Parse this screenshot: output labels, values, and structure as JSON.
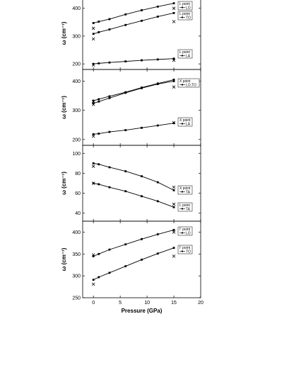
{
  "chart_data": [
    {
      "type": "line",
      "ylabel": "ω (cm⁻¹)",
      "xlim": [
        -2,
        20
      ],
      "ylim": [
        180,
        440
      ],
      "yticks": [
        200,
        300,
        400
      ],
      "series": [
        {
          "name": "LO",
          "legend_title": "L point",
          "x": [
            0,
            1,
            3,
            6,
            9,
            12,
            15
          ],
          "y": [
            347,
            352,
            361,
            378,
            393,
            406,
            418
          ]
        },
        {
          "name": "TO",
          "legend_title": "L point",
          "x": [
            0,
            1,
            3,
            6,
            9,
            12,
            15
          ],
          "y": [
            308,
            314,
            324,
            340,
            355,
            370,
            383
          ]
        },
        {
          "name": "LA",
          "legend_title": "L point",
          "x": [
            0,
            1,
            3,
            6,
            9,
            12,
            15
          ],
          "y": [
            200,
            202,
            205,
            209,
            213,
            216,
            219
          ]
        }
      ],
      "markers_x": [
        {
          "x": 0,
          "y": 328
        },
        {
          "x": 0,
          "y": 290
        },
        {
          "x": 0,
          "y": 196
        },
        {
          "x": 15,
          "y": 400
        },
        {
          "x": 15,
          "y": 352
        },
        {
          "x": 15,
          "y": 213
        }
      ]
    },
    {
      "type": "line",
      "ylabel": "ω (cm⁻¹)",
      "xlim": [
        -2,
        20
      ],
      "ylim": [
        180,
        440
      ],
      "yticks": [
        200,
        300,
        400
      ],
      "series": [
        {
          "name": "LO,TO",
          "legend_title": "X point",
          "x": [
            0,
            1,
            3,
            6,
            9,
            12,
            15
          ],
          "y": [
            333,
            338,
            348,
            362,
            378,
            392,
            405
          ]
        },
        {
          "name": "LO,TO",
          "legend_title": "X point",
          "x": [
            0,
            1,
            3,
            6,
            9,
            12,
            15
          ],
          "y": [
            324,
            330,
            342,
            360,
            376,
            390,
            400
          ]
        },
        {
          "name": "LA",
          "legend_title": "X point",
          "x": [
            0,
            1,
            3,
            6,
            9,
            12,
            15
          ],
          "y": [
            218,
            220,
            226,
            232,
            240,
            248,
            256
          ]
        }
      ],
      "markers_x": [
        {
          "x": 0,
          "y": 330
        },
        {
          "x": 0,
          "y": 320
        },
        {
          "x": 0,
          "y": 211
        },
        {
          "x": 15,
          "y": 380
        },
        {
          "x": 15,
          "y": 258
        }
      ]
    },
    {
      "type": "line",
      "ylabel": "ω (cm⁻¹)",
      "xlim": [
        -2,
        20
      ],
      "ylim": [
        32,
        108
      ],
      "yticks": [
        40,
        60,
        80,
        100
      ],
      "series": [
        {
          "name": "TA",
          "legend_title": "X point",
          "x": [
            0,
            1,
            3,
            6,
            9,
            12,
            15
          ],
          "y": [
            90,
            89,
            86,
            82,
            77,
            71,
            63
          ]
        },
        {
          "name": "TA",
          "legend_title": "L point",
          "x": [
            0,
            1,
            3,
            6,
            9,
            12,
            15
          ],
          "y": [
            70,
            69,
            66,
            62,
            57,
            52,
            46
          ]
        }
      ],
      "markers_x": [
        {
          "x": 0,
          "y": 87
        },
        {
          "x": 0,
          "y": 70
        },
        {
          "x": 15,
          "y": 66
        },
        {
          "x": 15,
          "y": 49
        }
      ]
    },
    {
      "type": "line",
      "ylabel": "ω (cm⁻¹)",
      "xlabel": "Pressure (GPa)",
      "xlim": [
        -2,
        20
      ],
      "ylim": [
        250,
        425
      ],
      "yticks": [
        250,
        300,
        350,
        400
      ],
      "xticks": [
        0,
        5,
        10,
        15,
        20
      ],
      "series": [
        {
          "name": "LO",
          "legend_title": "Γ point",
          "x": [
            0,
            1,
            3,
            6,
            9,
            12,
            15
          ],
          "y": [
            345,
            350,
            360,
            372,
            384,
            395,
            405
          ]
        },
        {
          "name": "TO",
          "legend_title": "Γ point",
          "x": [
            0,
            1,
            3,
            6,
            9,
            12,
            15
          ],
          "y": [
            291,
            297,
            307,
            322,
            337,
            351,
            364
          ]
        }
      ],
      "markers_x": [
        {
          "x": 0,
          "y": 348
        },
        {
          "x": 0,
          "y": 281
        },
        {
          "x": 15,
          "y": 400
        },
        {
          "x": 15,
          "y": 345
        }
      ]
    }
  ]
}
